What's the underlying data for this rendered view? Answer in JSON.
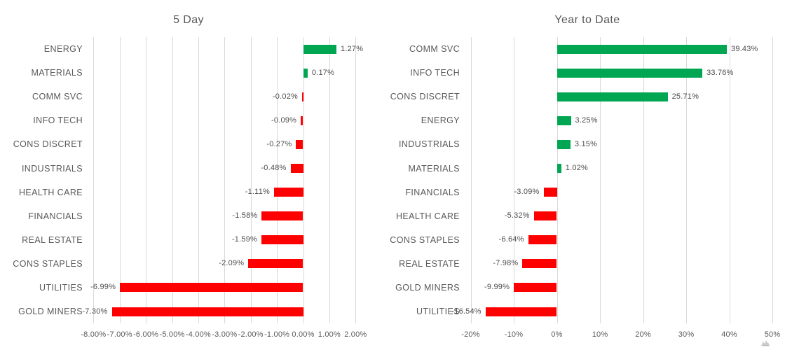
{
  "style": {
    "background": "#FFFFFF",
    "text_color": "#595959",
    "value_label_color": "#4D4D4D",
    "grid_color": "#D9D9D9",
    "positive_color": "#00A651",
    "negative_color": "#FF0000"
  },
  "icons": [
    {
      "name": "hand-cursor-icon",
      "color": "#CBCBCB"
    }
  ],
  "chart_data": [
    {
      "type": "bar",
      "orientation": "horizontal",
      "title": "5 Day",
      "categories": [
        "ENERGY",
        "MATERIALS",
        "COMM SVC",
        "INFO TECH",
        "CONS DISCRET",
        "INDUSTRIALS",
        "HEALTH CARE",
        "FINANCIALS",
        "REAL ESTATE",
        "CONS STAPLES",
        "UTILITIES",
        "GOLD MINERS"
      ],
      "values": [
        1.27,
        0.17,
        -0.02,
        -0.09,
        -0.27,
        -0.48,
        -1.11,
        -1.58,
        -1.59,
        -2.09,
        -6.99,
        -7.3
      ],
      "value_labels": [
        "1.27%",
        "0.17%",
        "-0.02%",
        "-0.09%",
        "-0.27%",
        "-0.48%",
        "-1.11%",
        "-1.58%",
        "-1.59%",
        "-2.09%",
        "-6.99%",
        "-7.30%"
      ],
      "xlim": [
        -8,
        2
      ],
      "tick_values": [
        -8,
        -7,
        -6,
        -5,
        -4,
        -3,
        -2,
        -1,
        0,
        1,
        2
      ],
      "tick_labels": [
        "-8.00%",
        "-7.00%",
        "-6.00%",
        "-5.00%",
        "-4.00%",
        "-3.00%",
        "-2.00%",
        "-1.00%",
        "0.00%",
        "1.00%",
        "2.00%"
      ],
      "grid": "vertical-gridlines",
      "legend": "none",
      "color_rule": "positive-green-negative-red"
    },
    {
      "type": "bar",
      "orientation": "horizontal",
      "title": "Year to Date",
      "categories": [
        "COMM SVC",
        "INFO TECH",
        "CONS DISCRET",
        "ENERGY",
        "INDUSTRIALS",
        "MATERIALS",
        "FINANCIALS",
        "HEALTH CARE",
        "CONS STAPLES",
        "REAL ESTATE",
        "GOLD MINERS",
        "UTILITIES"
      ],
      "values": [
        39.43,
        33.76,
        25.71,
        3.25,
        3.15,
        1.02,
        -3.09,
        -5.32,
        -6.64,
        -7.98,
        -9.99,
        -16.54
      ],
      "value_labels": [
        "39.43%",
        "33.76%",
        "25.71%",
        "3.25%",
        "3.15%",
        "1.02%",
        "-3.09%",
        "-5.32%",
        "-6.64%",
        "-7.98%",
        "-9.99%",
        "-16.54%"
      ],
      "xlim": [
        -20,
        50
      ],
      "tick_values": [
        -20,
        -10,
        0,
        10,
        20,
        30,
        40,
        50
      ],
      "tick_labels": [
        "-20%",
        "-10%",
        "0%",
        "10%",
        "20%",
        "30%",
        "40%",
        "50%"
      ],
      "grid": "vertical-gridlines",
      "legend": "none",
      "color_rule": "positive-green-negative-red"
    }
  ]
}
